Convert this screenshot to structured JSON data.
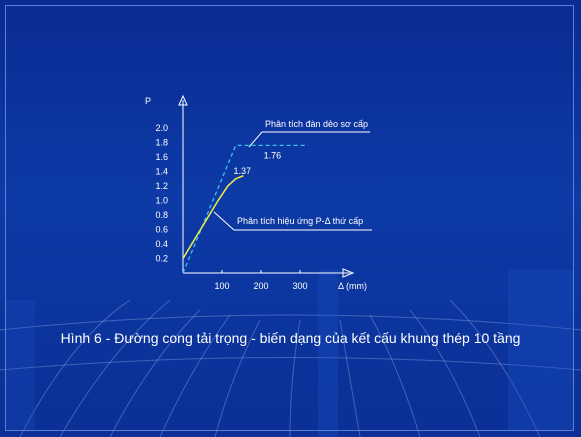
{
  "caption": "Hình 6 - Đường cong tải trọng - biến dạng của kết cấu khung thép 10 tầng",
  "colors": {
    "background": "#0b2a8c",
    "elastic_curve": "#37c4f4",
    "pdelta_curve": "#e6e94a",
    "axis": "#ffffff"
  },
  "chart_data": {
    "type": "line",
    "title": "",
    "xlabel": "Δ (mm)",
    "ylabel": "P",
    "xticks": [
      "100",
      "200",
      "300"
    ],
    "yticks": [
      "0.2",
      "0.4",
      "0.6",
      "0.8",
      "1.0",
      "1.2",
      "1.4",
      "1.6",
      "1.8",
      "2.0"
    ],
    "xlim": [
      0,
      440
    ],
    "ylim": [
      0,
      2.3
    ],
    "grid": false,
    "series": [
      {
        "name": "Phân tích đàn dẻo sơ cấp",
        "style": "dashed",
        "x": [
          0,
          135,
          320
        ],
        "y": [
          0,
          1.76,
          1.76
        ],
        "end_label": "1.76"
      },
      {
        "name": "Phân tích hiệu ứng P-Δ thứ cấp",
        "style": "solid",
        "x": [
          0,
          90,
          115,
          135,
          155
        ],
        "y": [
          0.2,
          1.0,
          1.2,
          1.3,
          1.34
        ],
        "end_label": "1.37"
      }
    ]
  }
}
